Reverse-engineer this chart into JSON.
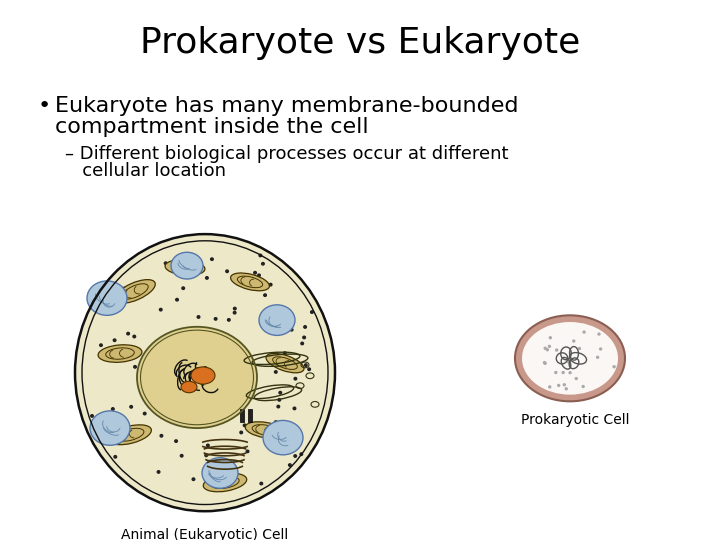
{
  "title": "Prokaryote vs Eukaryote",
  "bullet1_line1": "Eukaryote has many membrane-bounded",
  "bullet1_line2": "compartment inside the cell",
  "sub_bullet1_line1": "– Different biological processes occur at different",
  "sub_bullet1_line2": "   cellular location",
  "label_eukaryote": "Animal (Eukaryotic) Cell",
  "label_prokaryote": "Prokaryotic Cell",
  "bg_color": "#ffffff",
  "title_fontsize": 26,
  "bullet_fontsize": 16,
  "sub_bullet_fontsize": 13,
  "label_fontsize": 10
}
